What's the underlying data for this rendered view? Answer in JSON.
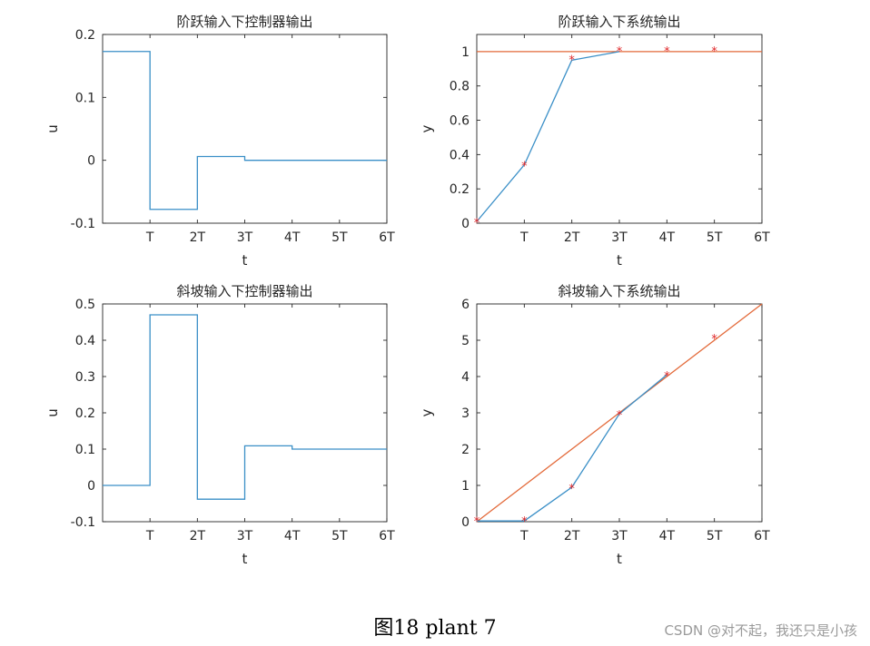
{
  "figure": {
    "caption": "图18 plant 7",
    "watermark": "CSDN @对不起，我还只是小孩"
  },
  "colors": {
    "line_blue": "#3a8fc7",
    "line_orange": "#e36a3a",
    "marker_red": "#e0282a"
  },
  "chart_data": [
    {
      "type": "line",
      "title": "阶跃输入下控制器输出",
      "xlabel": "t",
      "ylabel": "u",
      "xlim": [
        0,
        6
      ],
      "ylim": [
        -0.1,
        0.2
      ],
      "xticks": [
        1,
        2,
        3,
        4,
        5,
        6
      ],
      "xticklabels": [
        "T",
        "2T",
        "3T",
        "4T",
        "5T",
        "6T"
      ],
      "yticks": [
        -0.1,
        0,
        0.1,
        0.2
      ],
      "yticklabels": [
        "-0.1",
        "0",
        "0.1",
        "0.2"
      ],
      "step": true,
      "series": [
        {
          "x": [
            0,
            1,
            2,
            3,
            6
          ],
          "y": [
            0.173,
            -0.078,
            0.006,
            0.0,
            0.0
          ]
        }
      ]
    },
    {
      "type": "line",
      "title": "阶跃输入下系统输出",
      "xlabel": "t",
      "ylabel": "y",
      "xlim": [
        0,
        6
      ],
      "ylim": [
        0,
        1.1
      ],
      "xticks": [
        1,
        2,
        3,
        4,
        5,
        6
      ],
      "xticklabels": [
        "T",
        "2T",
        "3T",
        "4T",
        "5T",
        "6T"
      ],
      "yticks": [
        0,
        0.2,
        0.4,
        0.6,
        0.8,
        1
      ],
      "yticklabels": [
        "0",
        "0.2",
        "0.4",
        "0.6",
        "0.8",
        "1"
      ],
      "series": [
        {
          "x": [
            0,
            6
          ],
          "y": [
            1,
            1
          ],
          "style": "orange"
        },
        {
          "x": [
            0,
            1,
            2,
            3
          ],
          "y": [
            0.01,
            0.34,
            0.95,
            1.0
          ],
          "style": "blue"
        },
        {
          "x": [
            0,
            1,
            2,
            3,
            4,
            5
          ],
          "y": [
            0.01,
            0.34,
            0.96,
            1.01,
            1.01,
            1.01
          ],
          "style": "marker"
        }
      ]
    },
    {
      "type": "line",
      "title": "斜坡输入下控制器输出",
      "xlabel": "t",
      "ylabel": "u",
      "xlim": [
        0,
        6
      ],
      "ylim": [
        -0.1,
        0.5
      ],
      "xticks": [
        1,
        2,
        3,
        4,
        5,
        6
      ],
      "xticklabels": [
        "T",
        "2T",
        "3T",
        "4T",
        "5T",
        "6T"
      ],
      "yticks": [
        -0.1,
        0,
        0.1,
        0.2,
        0.3,
        0.4,
        0.5
      ],
      "yticklabels": [
        "-0.1",
        "0",
        "0.1",
        "0.2",
        "0.3",
        "0.4",
        "0.5"
      ],
      "step": true,
      "series": [
        {
          "x": [
            0,
            1,
            2,
            3,
            4,
            6
          ],
          "y": [
            0.0,
            0.47,
            -0.038,
            0.109,
            0.1,
            0.1
          ]
        }
      ]
    },
    {
      "type": "line",
      "title": "斜坡输入下系统输出",
      "xlabel": "t",
      "ylabel": "y",
      "xlim": [
        0,
        6
      ],
      "ylim": [
        0,
        6
      ],
      "xticks": [
        1,
        2,
        3,
        4,
        5,
        6
      ],
      "xticklabels": [
        "T",
        "2T",
        "3T",
        "4T",
        "5T",
        "6T"
      ],
      "yticks": [
        0,
        1,
        2,
        3,
        4,
        5,
        6
      ],
      "yticklabels": [
        "0",
        "1",
        "2",
        "3",
        "4",
        "5",
        "6"
      ],
      "series": [
        {
          "x": [
            0,
            6
          ],
          "y": [
            0,
            6
          ],
          "style": "orange"
        },
        {
          "x": [
            0,
            1,
            2,
            3,
            4
          ],
          "y": [
            0.02,
            0.02,
            0.95,
            2.97,
            4.05
          ],
          "style": "blue"
        },
        {
          "x": [
            0,
            1,
            2,
            3,
            4,
            5
          ],
          "y": [
            0.05,
            0.05,
            0.95,
            2.97,
            4.05,
            5.07
          ],
          "style": "marker"
        }
      ]
    }
  ]
}
